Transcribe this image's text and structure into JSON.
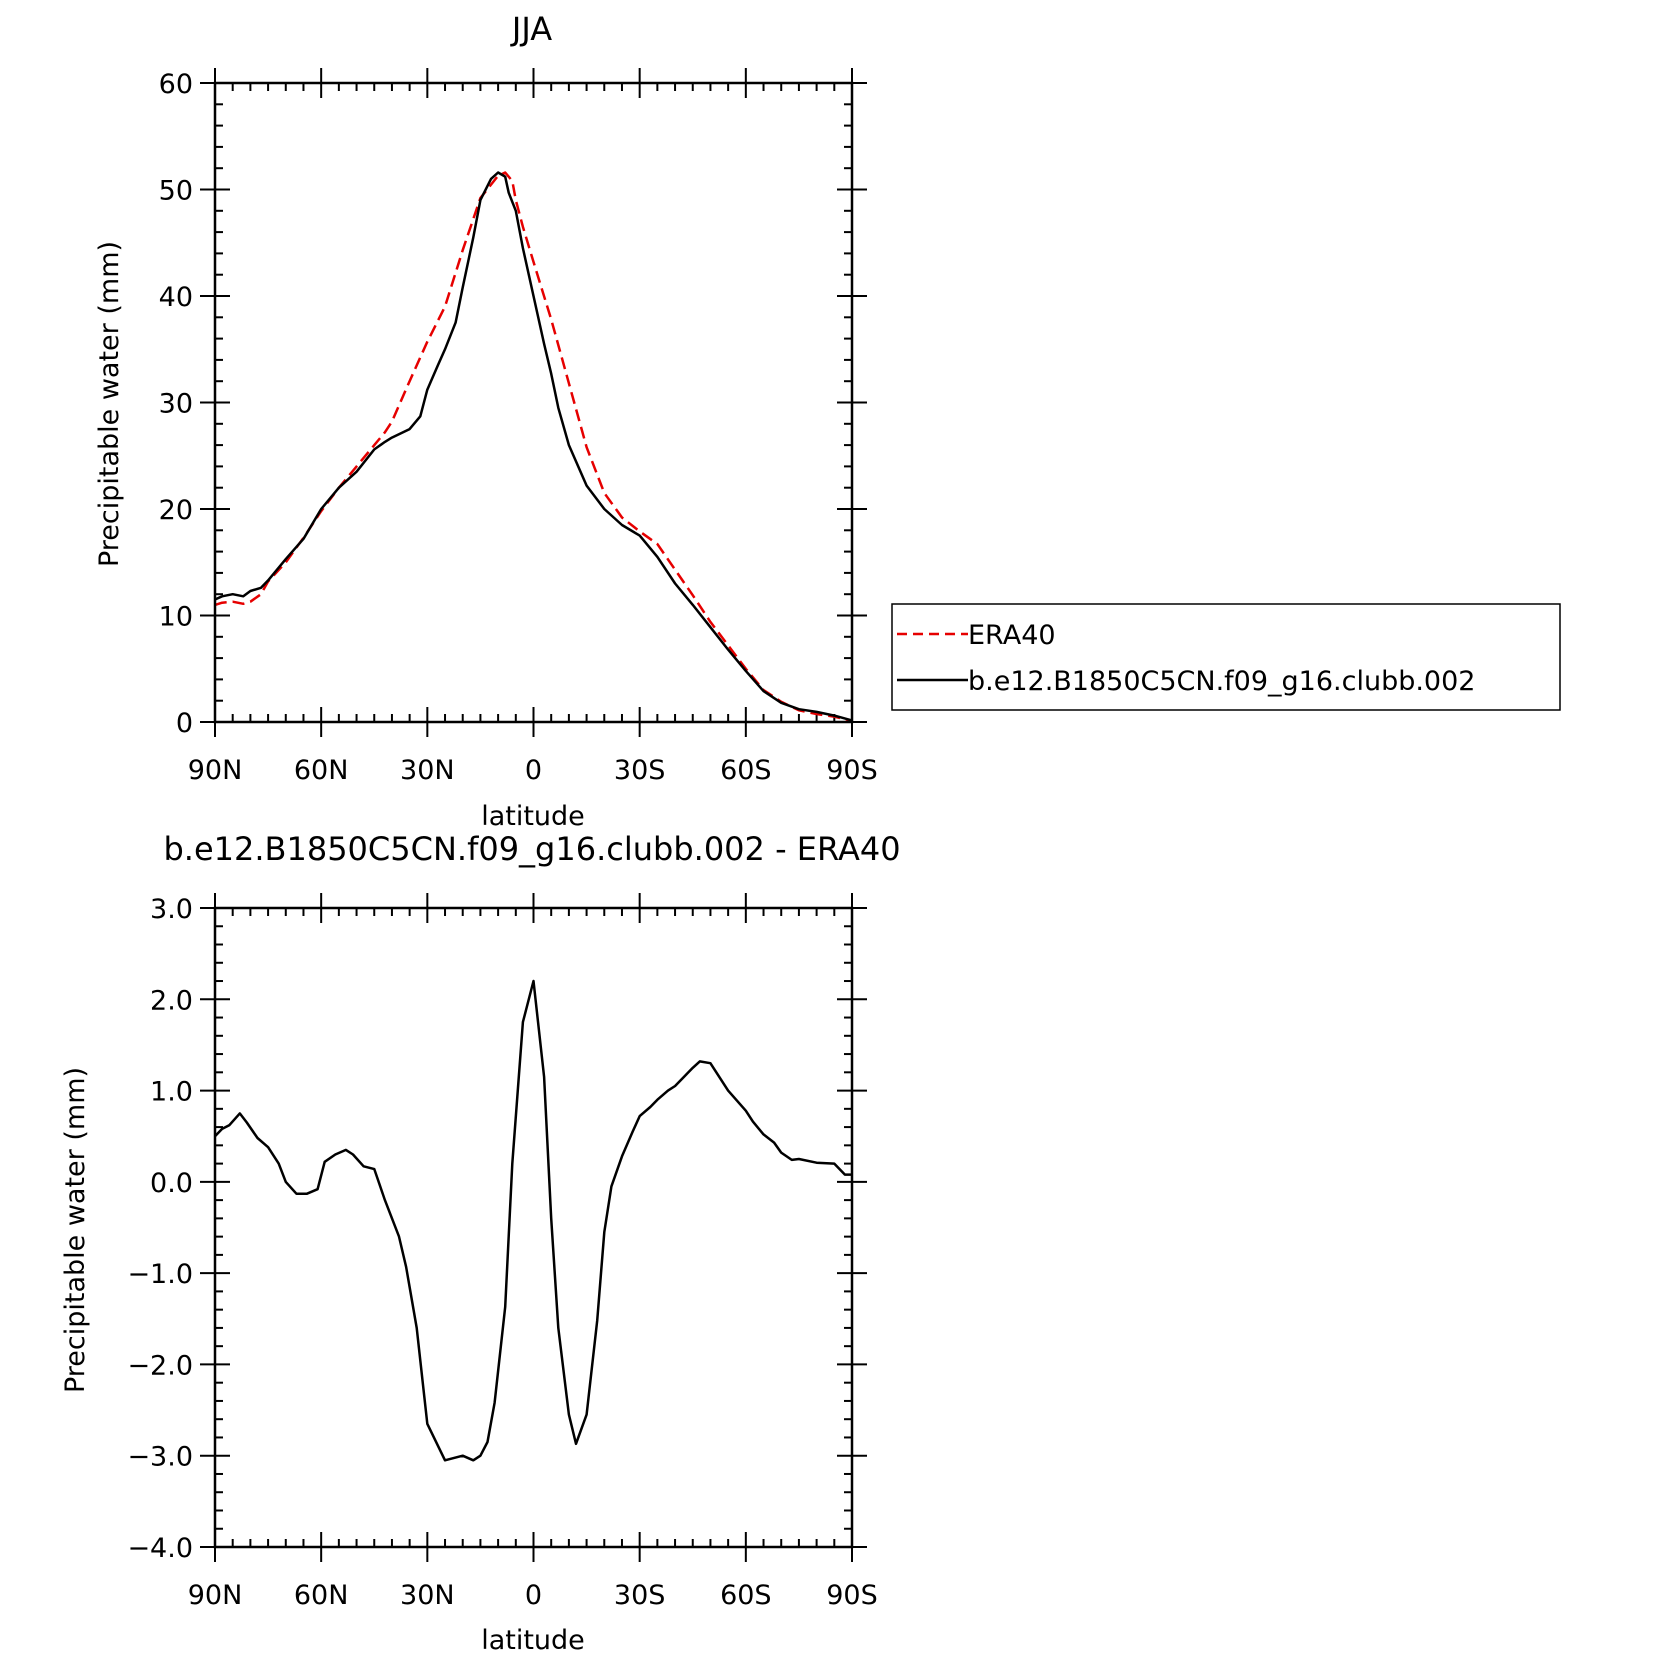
{
  "colors": {
    "era40": "#e60000",
    "model": "#000000",
    "axis": "#000000",
    "background": "#ffffff"
  },
  "chart_data": [
    {
      "type": "line",
      "title": "JJA",
      "xlabel": "latitude",
      "ylabel": "Precipitable water (mm)",
      "xlim": [
        90,
        -90
      ],
      "ylim": [
        0,
        60
      ],
      "xticks": [
        90,
        60,
        30,
        0,
        -30,
        -60,
        -90
      ],
      "xtick_labels": [
        "90N",
        "60N",
        "30N",
        "0",
        "30S",
        "60S",
        "90S"
      ],
      "yticks": [
        0,
        10,
        20,
        30,
        40,
        50,
        60
      ],
      "ytick_labels": [
        "0",
        "10",
        "20",
        "30",
        "40",
        "50",
        "60"
      ],
      "legend_position": "right",
      "series": [
        {
          "name": "ERA40",
          "style": "dashed",
          "x": [
            90,
            88,
            85,
            82,
            80,
            77,
            75,
            70,
            65,
            60,
            55,
            50,
            45,
            42,
            40,
            35,
            30,
            25,
            20,
            15,
            10,
            8,
            6,
            5,
            3,
            0,
            -5,
            -10,
            -15,
            -20,
            -25,
            -30,
            -35,
            -40,
            -45,
            -50,
            -55,
            -60,
            -65,
            -70,
            -75,
            -80,
            -85,
            -90
          ],
          "y": [
            11.0,
            11.2,
            11.3,
            11.1,
            11.3,
            12.0,
            13.2,
            15.0,
            17.3,
            19.8,
            22.0,
            24.0,
            26.0,
            27.2,
            28.2,
            32.0,
            35.7,
            39.0,
            44.3,
            49.2,
            51.3,
            51.6,
            50.8,
            49.0,
            46.5,
            43.2,
            37.8,
            31.8,
            25.8,
            21.5,
            19.2,
            17.9,
            16.7,
            14.3,
            11.9,
            9.4,
            7.2,
            5.0,
            3.0,
            1.9,
            1.1,
            0.75,
            0.5,
            0.1
          ]
        },
        {
          "name": "b.e12.B1850C5CN.f09_g16.clubb.002",
          "style": "solid",
          "x": [
            90,
            88,
            85,
            82,
            80,
            77,
            75,
            70,
            65,
            60,
            55,
            50,
            45,
            42,
            40,
            35,
            32,
            30,
            27,
            25,
            22,
            20,
            17,
            15,
            12,
            10,
            8,
            7,
            5,
            3,
            0,
            -3,
            -5,
            -7,
            -10,
            -15,
            -20,
            -25,
            -30,
            -35,
            -40,
            -45,
            -50,
            -55,
            -60,
            -65,
            -70,
            -75,
            -80,
            -85,
            -90
          ],
          "y": [
            11.5,
            11.8,
            12.0,
            11.8,
            12.3,
            12.6,
            13.3,
            15.3,
            17.2,
            20.0,
            22.0,
            23.5,
            25.6,
            26.3,
            26.7,
            27.5,
            28.7,
            31.2,
            33.5,
            35.0,
            37.5,
            40.8,
            45.5,
            49.0,
            51.0,
            51.6,
            51.2,
            49.7,
            48.0,
            44.5,
            40.0,
            35.5,
            32.7,
            29.5,
            26.0,
            22.2,
            20.0,
            18.5,
            17.5,
            15.5,
            13.0,
            11.0,
            8.9,
            6.8,
            4.8,
            2.9,
            1.8,
            1.2,
            0.95,
            0.6,
            0.15
          ]
        }
      ]
    },
    {
      "type": "line",
      "title": "b.e12.B1850C5CN.f09_g16.clubb.002 - ERA40",
      "xlabel": "latitude",
      "ylabel": "Precipitable water (mm)",
      "xlim": [
        90,
        -90
      ],
      "ylim": [
        -4.0,
        3.0
      ],
      "xticks": [
        90,
        60,
        30,
        0,
        -30,
        -60,
        -90
      ],
      "xtick_labels": [
        "90N",
        "60N",
        "30N",
        "0",
        "30S",
        "60S",
        "90S"
      ],
      "yticks": [
        3.0,
        2.0,
        1.0,
        0.0,
        -1.0,
        -2.0,
        -3.0,
        -4.0
      ],
      "ytick_labels": [
        "3.0",
        "2.0",
        "1.0",
        "0.0",
        "−1.0",
        "−2.0",
        "−3.0",
        "−4.0"
      ],
      "series": [
        {
          "style": "solid",
          "x": [
            90,
            88,
            86,
            83,
            81,
            78,
            75,
            72,
            70,
            67,
            64,
            61,
            59,
            56,
            53,
            51,
            48,
            45,
            42,
            38,
            36,
            33,
            30,
            25,
            20,
            17,
            15,
            13,
            11,
            8,
            6,
            3,
            0,
            -3,
            -5,
            -7,
            -10,
            -12,
            -15,
            -18,
            -20,
            -22,
            -25,
            -28,
            -30,
            -33,
            -35,
            -38,
            -40,
            -45,
            -47,
            -50,
            -55,
            -60,
            -62,
            -65,
            -68,
            -70,
            -73,
            -75,
            -80,
            -85,
            -88,
            -90
          ],
          "y": [
            0.5,
            0.58,
            0.62,
            0.75,
            0.65,
            0.48,
            0.38,
            0.2,
            0.0,
            -0.13,
            -0.13,
            -0.08,
            0.22,
            0.3,
            0.35,
            0.3,
            0.17,
            0.14,
            -0.2,
            -0.6,
            -0.93,
            -1.6,
            -2.65,
            -3.05,
            -3.0,
            -3.05,
            -3.0,
            -2.85,
            -2.42,
            -1.37,
            0.2,
            1.75,
            2.2,
            1.15,
            -0.4,
            -1.6,
            -2.55,
            -2.87,
            -2.55,
            -1.52,
            -0.55,
            -0.05,
            0.28,
            0.55,
            0.72,
            0.82,
            0.9,
            1.0,
            1.05,
            1.25,
            1.32,
            1.3,
            1.0,
            0.78,
            0.66,
            0.52,
            0.43,
            0.32,
            0.24,
            0.25,
            0.21,
            0.2,
            0.08,
            0.08
          ]
        }
      ]
    }
  ]
}
